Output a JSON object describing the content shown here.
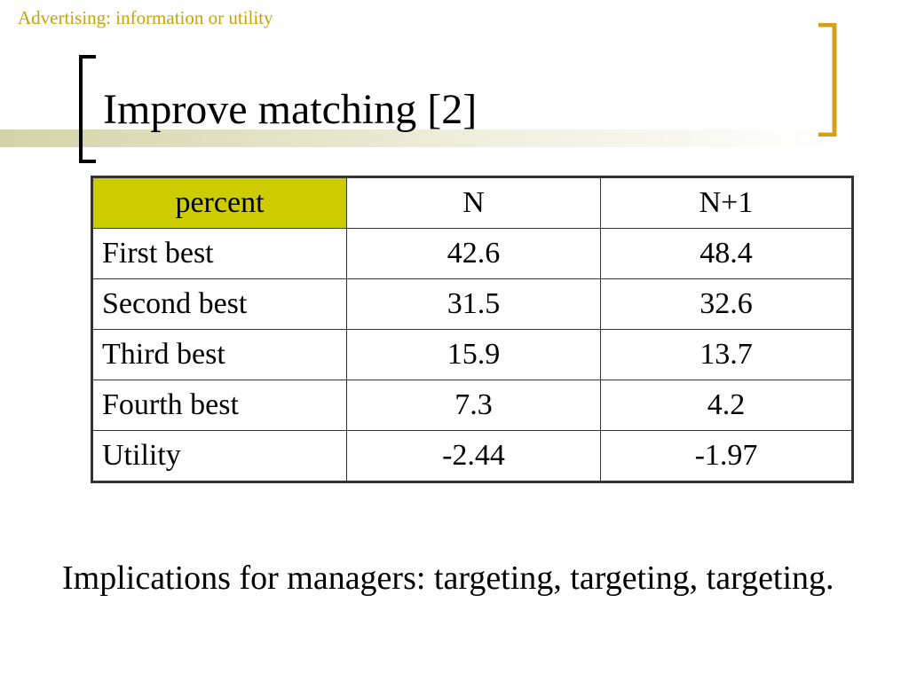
{
  "header": {
    "topic": "Advertising: information or utility"
  },
  "slide": {
    "title": "Improve matching [2]"
  },
  "table": {
    "headers": [
      "percent",
      "N",
      "N+1"
    ],
    "rows": [
      [
        "First best",
        "42.6",
        "48.4"
      ],
      [
        "Second best",
        "31.5",
        "32.6"
      ],
      [
        "Third best",
        "15.9",
        "13.7"
      ],
      [
        "Fourth best",
        "7.3",
        "4.2"
      ],
      [
        "Utility",
        "-2.44",
        "-1.97"
      ]
    ]
  },
  "body": {
    "implications": "Implications for managers: targeting, targeting, targeting."
  },
  "colors": {
    "accent_gold": "#d4a017",
    "header_text": "#c9a400",
    "table_highlight": "#cccc00",
    "title_band": "#d4d4a8"
  }
}
